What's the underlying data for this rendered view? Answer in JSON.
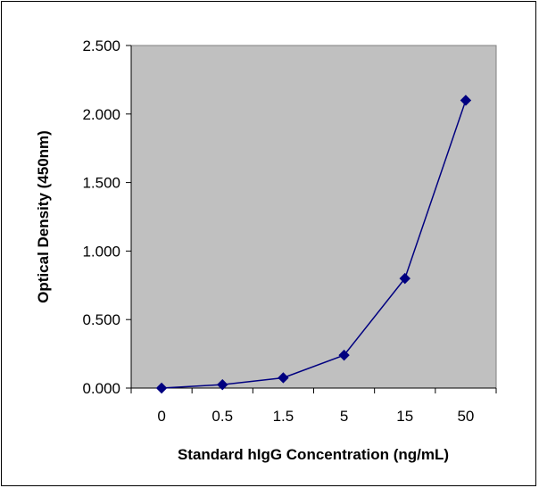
{
  "chart_data": {
    "type": "line",
    "title": "",
    "xlabel": "Standard hIgG Concentration (ng/mL)",
    "ylabel": "Optical Density (450nm)",
    "categories": [
      "0",
      "0.5",
      "1.5",
      "5",
      "15",
      "50"
    ],
    "series": [
      {
        "values": [
          0.0,
          0.025,
          0.075,
          0.24,
          0.8,
          2.1
        ]
      }
    ],
    "ylim": [
      0,
      2.5
    ],
    "yticks": [
      "0.000",
      "0.500",
      "1.000",
      "1.500",
      "2.000",
      "2.500"
    ],
    "grid": false,
    "legend": "none",
    "colors": {
      "plot_background": "#c0c0c0",
      "series_line": "#000080",
      "marker": "#000080",
      "axis": "#000000"
    }
  }
}
